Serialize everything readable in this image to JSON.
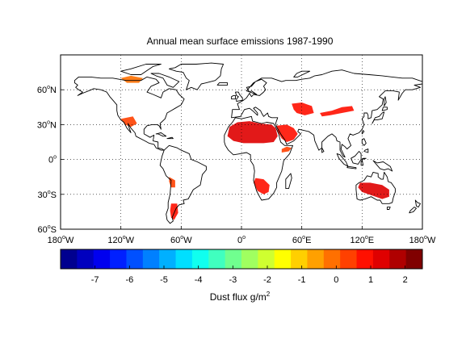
{
  "map": {
    "title": "Annual mean surface emissions 1987-1990",
    "lon_ticks": [
      {
        "lon": -180,
        "deg": "180",
        "suf": "W"
      },
      {
        "lon": -120,
        "deg": "120",
        "suf": "W"
      },
      {
        "lon": -60,
        "deg": "60",
        "suf": "W"
      },
      {
        "lon": 0,
        "deg": "0",
        "suf": ""
      },
      {
        "lon": 60,
        "deg": "60",
        "suf": "E"
      },
      {
        "lon": 120,
        "deg": "120",
        "suf": "E"
      },
      {
        "lon": 180,
        "deg": "180",
        "suf": "W"
      }
    ],
    "lat_ticks": [
      {
        "lat": 60,
        "deg": "60",
        "suf": "N"
      },
      {
        "lat": 30,
        "deg": "30",
        "suf": "N"
      },
      {
        "lat": 0,
        "deg": "0",
        "suf": ""
      },
      {
        "lat": -30,
        "deg": "30",
        "suf": "S"
      },
      {
        "lat": -60,
        "deg": "60",
        "suf": "S"
      }
    ],
    "lon_range": [
      -180,
      180
    ],
    "lat_range": [
      -60,
      90
    ],
    "grid": "dotted",
    "emission_regions": [
      {
        "name": "North Africa / Sahara",
        "level": 1.3
      },
      {
        "name": "Arabian Peninsula",
        "level": 1.0
      },
      {
        "name": "Middle East / Central Asia",
        "level": 0.8
      },
      {
        "name": "Taklamakan / Gobi",
        "level": 0.7
      },
      {
        "name": "Australia interior",
        "level": 1.2
      },
      {
        "name": "Southern Africa / Kalahari",
        "level": 0.9
      },
      {
        "name": "Horn of Africa",
        "level": 0.5
      },
      {
        "name": "Patagonia",
        "level": 0.9
      },
      {
        "name": "Western South America",
        "level": 0.4
      },
      {
        "name": "Southwest North America",
        "level": 0.4
      },
      {
        "name": "Northern Canada",
        "level": -0.2
      }
    ]
  },
  "colorbar": {
    "label_main": "Dust flux g/m",
    "label_sup": "2",
    "range": [
      -8,
      2.5
    ],
    "tick_labels": [
      "-7",
      "-6",
      "-5",
      "-4",
      "-3",
      "-2",
      "-1",
      "0",
      "1",
      "2"
    ],
    "colors": [
      "#00008f",
      "#0000bf",
      "#0000ef",
      "#0020ff",
      "#0050ff",
      "#0080ff",
      "#00b0ff",
      "#00dfff",
      "#10ffef",
      "#40ffbf",
      "#70ff8f",
      "#a0ff60",
      "#cfff30",
      "#ffff00",
      "#ffcf00",
      "#ffa000",
      "#ff7000",
      "#ff4000",
      "#ff1000",
      "#df0000",
      "#af0000",
      "#800000"
    ]
  }
}
